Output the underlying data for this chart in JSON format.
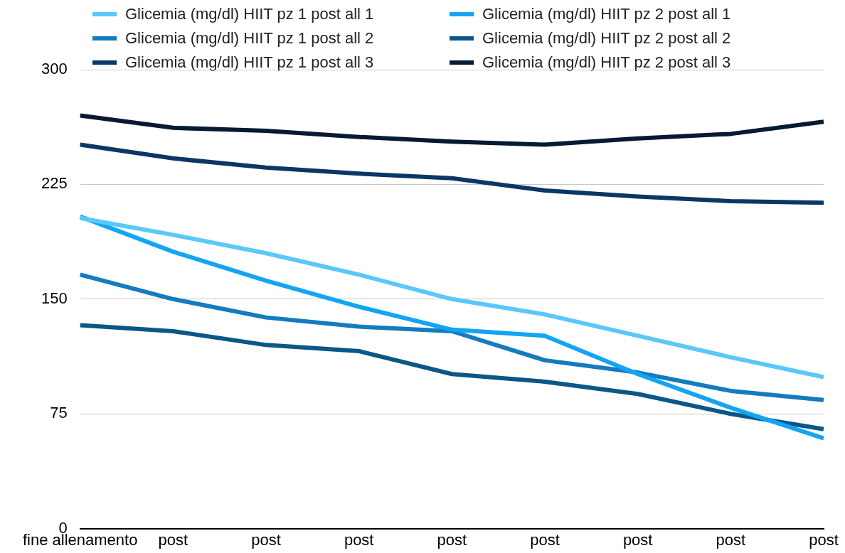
{
  "chart_data": {
    "type": "line",
    "categories": [
      "fine allenamento",
      "post",
      "post",
      "post",
      "post",
      "post",
      "post",
      "post",
      "post"
    ],
    "series": [
      {
        "name": "Glicemia (mg/dl) HIIT pz 1 post all 1",
        "color": "#5ac8fa",
        "values": [
          203,
          192,
          180,
          166,
          150,
          140,
          126,
          112,
          99
        ]
      },
      {
        "name": "Glicemia (mg/dl) HIIT pz 2 post all 1",
        "color": "#14a4f4",
        "values": [
          204,
          181,
          162,
          145,
          130,
          126,
          101,
          79,
          59
        ]
      },
      {
        "name": "Glicemia (mg/dl) HIIT pz 1 post all 2",
        "color": "#157bbf",
        "values": [
          166,
          150,
          138,
          132,
          129,
          110,
          102,
          90,
          84
        ]
      },
      {
        "name": "Glicemia (mg/dl) HIIT pz 2 post all 2",
        "color": "#0b5788",
        "values": [
          133,
          129,
          120,
          116,
          101,
          96,
          88,
          75,
          65
        ]
      },
      {
        "name": "Glicemia (mg/dl) HIIT pz 1 post all 3",
        "color": "#0b3764",
        "values": [
          251,
          242,
          236,
          232,
          229,
          221,
          217,
          214,
          213
        ]
      },
      {
        "name": "Glicemia (mg/dl) HIIT pz 2 post all 3",
        "color": "#061a33",
        "values": [
          270,
          262,
          260,
          256,
          253,
          251,
          255,
          258,
          266
        ]
      }
    ],
    "ylim": [
      0,
      300
    ],
    "yticks": [
      0,
      75,
      150,
      225,
      300
    ],
    "grid": "y",
    "legend": "top",
    "marker": "none",
    "line_style": "solid"
  }
}
